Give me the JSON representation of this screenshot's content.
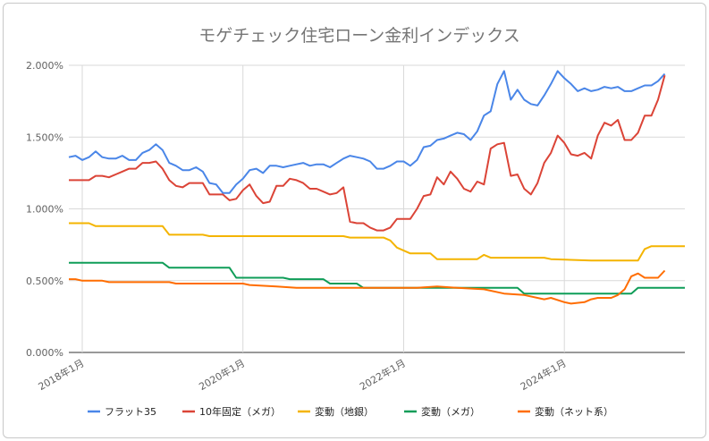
{
  "chart_data": {
    "type": "line",
    "title": "モゲチェック住宅ローン金利インデックス",
    "xlabel": "",
    "ylabel": "",
    "x_start": "2017-11",
    "x_end": "2025-07",
    "ylim": [
      0,
      2.0
    ],
    "yticks": [
      "0.000%",
      "0.500%",
      "1.000%",
      "1.500%",
      "2.000%"
    ],
    "xticks": [
      {
        "label": "2018年1月",
        "date": "2018-01"
      },
      {
        "label": "2020年1月",
        "date": "2020-01"
      },
      {
        "label": "2022年1月",
        "date": "2022-01"
      },
      {
        "label": "2024年1月",
        "date": "2024-01"
      }
    ],
    "grid": true,
    "legend_position": "bottom",
    "series": [
      {
        "name": "フラット35",
        "color": "#4a86e8",
        "points": [
          [
            "2017-11",
            1.36
          ],
          [
            "2017-12",
            1.37
          ],
          [
            "2018-01",
            1.34
          ],
          [
            "2018-02",
            1.36
          ],
          [
            "2018-03",
            1.4
          ],
          [
            "2018-04",
            1.36
          ],
          [
            "2018-05",
            1.35
          ],
          [
            "2018-06",
            1.35
          ],
          [
            "2018-07",
            1.37
          ],
          [
            "2018-08",
            1.34
          ],
          [
            "2018-09",
            1.34
          ],
          [
            "2018-10",
            1.39
          ],
          [
            "2018-11",
            1.41
          ],
          [
            "2018-12",
            1.45
          ],
          [
            "2019-01",
            1.41
          ],
          [
            "2019-02",
            1.32
          ],
          [
            "2019-03",
            1.3
          ],
          [
            "2019-04",
            1.27
          ],
          [
            "2019-05",
            1.27
          ],
          [
            "2019-06",
            1.29
          ],
          [
            "2019-07",
            1.26
          ],
          [
            "2019-08",
            1.18
          ],
          [
            "2019-09",
            1.17
          ],
          [
            "2019-10",
            1.11
          ],
          [
            "2019-11",
            1.11
          ],
          [
            "2019-12",
            1.17
          ],
          [
            "2020-01",
            1.21
          ],
          [
            "2020-02",
            1.27
          ],
          [
            "2020-03",
            1.28
          ],
          [
            "2020-04",
            1.25
          ],
          [
            "2020-05",
            1.3
          ],
          [
            "2020-06",
            1.3
          ],
          [
            "2020-07",
            1.29
          ],
          [
            "2020-08",
            1.3
          ],
          [
            "2020-09",
            1.31
          ],
          [
            "2020-10",
            1.32
          ],
          [
            "2020-11",
            1.3
          ],
          [
            "2020-12",
            1.31
          ],
          [
            "2021-01",
            1.31
          ],
          [
            "2021-02",
            1.29
          ],
          [
            "2021-03",
            1.32
          ],
          [
            "2021-04",
            1.35
          ],
          [
            "2021-05",
            1.37
          ],
          [
            "2021-06",
            1.36
          ],
          [
            "2021-07",
            1.35
          ],
          [
            "2021-08",
            1.33
          ],
          [
            "2021-09",
            1.28
          ],
          [
            "2021-10",
            1.28
          ],
          [
            "2021-11",
            1.3
          ],
          [
            "2021-12",
            1.33
          ],
          [
            "2022-01",
            1.33
          ],
          [
            "2022-02",
            1.3
          ],
          [
            "2022-03",
            1.34
          ],
          [
            "2022-04",
            1.43
          ],
          [
            "2022-05",
            1.44
          ],
          [
            "2022-06",
            1.48
          ],
          [
            "2022-07",
            1.49
          ],
          [
            "2022-08",
            1.51
          ],
          [
            "2022-09",
            1.53
          ],
          [
            "2022-10",
            1.52
          ],
          [
            "2022-11",
            1.48
          ],
          [
            "2022-12",
            1.54
          ],
          [
            "2023-01",
            1.65
          ],
          [
            "2023-02",
            1.68
          ],
          [
            "2023-03",
            1.87
          ],
          [
            "2023-04",
            1.96
          ],
          [
            "2023-05",
            1.76
          ],
          [
            "2023-06",
            1.83
          ],
          [
            "2023-07",
            1.76
          ],
          [
            "2023-08",
            1.73
          ],
          [
            "2023-09",
            1.72
          ],
          [
            "2023-10",
            1.79
          ],
          [
            "2023-11",
            1.87
          ],
          [
            "2023-12",
            1.96
          ],
          [
            "2024-01",
            1.91
          ],
          [
            "2024-02",
            1.87
          ],
          [
            "2024-03",
            1.82
          ],
          [
            "2024-04",
            1.84
          ],
          [
            "2024-05",
            1.82
          ],
          [
            "2024-06",
            1.83
          ],
          [
            "2024-07",
            1.85
          ],
          [
            "2024-08",
            1.84
          ],
          [
            "2024-09",
            1.85
          ],
          [
            "2024-10",
            1.82
          ],
          [
            "2024-11",
            1.82
          ],
          [
            "2024-12",
            1.84
          ],
          [
            "2025-01",
            1.86
          ],
          [
            "2025-02",
            1.86
          ],
          [
            "2025-03",
            1.89
          ],
          [
            "2025-04",
            1.94
          ]
        ]
      },
      {
        "name": "10年固定（メガ）",
        "color": "#db4437",
        "points": [
          [
            "2017-11",
            1.2
          ],
          [
            "2017-12",
            1.2
          ],
          [
            "2018-01",
            1.2
          ],
          [
            "2018-02",
            1.2
          ],
          [
            "2018-03",
            1.23
          ],
          [
            "2018-04",
            1.23
          ],
          [
            "2018-05",
            1.22
          ],
          [
            "2018-06",
            1.24
          ],
          [
            "2018-07",
            1.26
          ],
          [
            "2018-08",
            1.28
          ],
          [
            "2018-09",
            1.28
          ],
          [
            "2018-10",
            1.32
          ],
          [
            "2018-11",
            1.32
          ],
          [
            "2018-12",
            1.33
          ],
          [
            "2019-01",
            1.28
          ],
          [
            "2019-02",
            1.2
          ],
          [
            "2019-03",
            1.16
          ],
          [
            "2019-04",
            1.15
          ],
          [
            "2019-05",
            1.18
          ],
          [
            "2019-06",
            1.18
          ],
          [
            "2019-07",
            1.18
          ],
          [
            "2019-08",
            1.1
          ],
          [
            "2019-09",
            1.1
          ],
          [
            "2019-10",
            1.1
          ],
          [
            "2019-11",
            1.06
          ],
          [
            "2019-12",
            1.07
          ],
          [
            "2020-01",
            1.13
          ],
          [
            "2020-02",
            1.17
          ],
          [
            "2020-03",
            1.09
          ],
          [
            "2020-04",
            1.04
          ],
          [
            "2020-05",
            1.05
          ],
          [
            "2020-06",
            1.16
          ],
          [
            "2020-07",
            1.16
          ],
          [
            "2020-08",
            1.21
          ],
          [
            "2020-09",
            1.2
          ],
          [
            "2020-10",
            1.18
          ],
          [
            "2020-11",
            1.14
          ],
          [
            "2020-12",
            1.14
          ],
          [
            "2021-01",
            1.12
          ],
          [
            "2021-02",
            1.1
          ],
          [
            "2021-03",
            1.11
          ],
          [
            "2021-04",
            1.15
          ],
          [
            "2021-05",
            0.91
          ],
          [
            "2021-06",
            0.9
          ],
          [
            "2021-07",
            0.9
          ],
          [
            "2021-08",
            0.87
          ],
          [
            "2021-09",
            0.85
          ],
          [
            "2021-10",
            0.85
          ],
          [
            "2021-11",
            0.87
          ],
          [
            "2021-12",
            0.93
          ],
          [
            "2022-01",
            0.93
          ],
          [
            "2022-02",
            0.93
          ],
          [
            "2022-03",
            1.0
          ],
          [
            "2022-04",
            1.09
          ],
          [
            "2022-05",
            1.1
          ],
          [
            "2022-06",
            1.22
          ],
          [
            "2022-07",
            1.17
          ],
          [
            "2022-08",
            1.26
          ],
          [
            "2022-09",
            1.21
          ],
          [
            "2022-10",
            1.14
          ],
          [
            "2022-11",
            1.12
          ],
          [
            "2022-12",
            1.19
          ],
          [
            "2023-01",
            1.17
          ],
          [
            "2023-02",
            1.42
          ],
          [
            "2023-03",
            1.45
          ],
          [
            "2023-04",
            1.46
          ],
          [
            "2023-05",
            1.23
          ],
          [
            "2023-06",
            1.24
          ],
          [
            "2023-07",
            1.14
          ],
          [
            "2023-08",
            1.1
          ],
          [
            "2023-09",
            1.18
          ],
          [
            "2023-10",
            1.32
          ],
          [
            "2023-11",
            1.39
          ],
          [
            "2023-12",
            1.51
          ],
          [
            "2024-01",
            1.46
          ],
          [
            "2024-02",
            1.38
          ],
          [
            "2024-03",
            1.37
          ],
          [
            "2024-04",
            1.39
          ],
          [
            "2024-05",
            1.35
          ],
          [
            "2024-06",
            1.51
          ],
          [
            "2024-07",
            1.6
          ],
          [
            "2024-08",
            1.58
          ],
          [
            "2024-09",
            1.62
          ],
          [
            "2024-10",
            1.48
          ],
          [
            "2024-11",
            1.48
          ],
          [
            "2024-12",
            1.53
          ],
          [
            "2025-01",
            1.65
          ],
          [
            "2025-02",
            1.65
          ],
          [
            "2025-03",
            1.76
          ],
          [
            "2025-04",
            1.93
          ]
        ]
      },
      {
        "name": "変動（地銀）",
        "color": "#f4b400",
        "points": [
          [
            "2017-11",
            0.9
          ],
          [
            "2018-02",
            0.9
          ],
          [
            "2018-03",
            0.88
          ],
          [
            "2019-01",
            0.88
          ],
          [
            "2019-02",
            0.82
          ],
          [
            "2019-07",
            0.82
          ],
          [
            "2019-08",
            0.81
          ],
          [
            "2021-04",
            0.81
          ],
          [
            "2021-05",
            0.8
          ],
          [
            "2021-10",
            0.8
          ],
          [
            "2021-11",
            0.78
          ],
          [
            "2021-12",
            0.73
          ],
          [
            "2022-02",
            0.69
          ],
          [
            "2022-05",
            0.69
          ],
          [
            "2022-06",
            0.65
          ],
          [
            "2022-12",
            0.65
          ],
          [
            "2023-01",
            0.68
          ],
          [
            "2023-02",
            0.66
          ],
          [
            "2023-10",
            0.66
          ],
          [
            "2023-11",
            0.65
          ],
          [
            "2024-05",
            0.64
          ],
          [
            "2024-12",
            0.64
          ],
          [
            "2025-01",
            0.72
          ],
          [
            "2025-02",
            0.74
          ],
          [
            "2025-07",
            0.74
          ]
        ]
      },
      {
        "name": "変動（メガ）",
        "color": "#0f9d58",
        "points": [
          [
            "2017-11",
            0.625
          ],
          [
            "2019-01",
            0.625
          ],
          [
            "2019-02",
            0.59
          ],
          [
            "2019-11",
            0.59
          ],
          [
            "2019-12",
            0.52
          ],
          [
            "2020-07",
            0.52
          ],
          [
            "2020-08",
            0.51
          ],
          [
            "2021-01",
            0.51
          ],
          [
            "2021-02",
            0.48
          ],
          [
            "2021-06",
            0.48
          ],
          [
            "2021-07",
            0.45
          ],
          [
            "2023-06",
            0.45
          ],
          [
            "2023-07",
            0.41
          ],
          [
            "2024-11",
            0.41
          ],
          [
            "2024-12",
            0.45
          ],
          [
            "2025-07",
            0.45
          ]
        ]
      },
      {
        "name": "変動（ネット系）",
        "color": "#ff6d01",
        "points": [
          [
            "2017-11",
            0.51
          ],
          [
            "2017-12",
            0.51
          ],
          [
            "2018-01",
            0.5
          ],
          [
            "2018-04",
            0.5
          ],
          [
            "2018-05",
            0.49
          ],
          [
            "2019-02",
            0.49
          ],
          [
            "2019-03",
            0.48
          ],
          [
            "2020-01",
            0.48
          ],
          [
            "2020-02",
            0.47
          ],
          [
            "2020-06",
            0.46
          ],
          [
            "2020-09",
            0.45
          ],
          [
            "2021-02",
            0.45
          ],
          [
            "2021-06",
            0.45
          ],
          [
            "2022-03",
            0.45
          ],
          [
            "2022-06",
            0.46
          ],
          [
            "2022-09",
            0.45
          ],
          [
            "2023-01",
            0.44
          ],
          [
            "2023-04",
            0.41
          ],
          [
            "2023-07",
            0.4
          ],
          [
            "2023-10",
            0.37
          ],
          [
            "2023-11",
            0.38
          ],
          [
            "2024-01",
            0.35
          ],
          [
            "2024-02",
            0.34
          ],
          [
            "2024-04",
            0.35
          ],
          [
            "2024-05",
            0.37
          ],
          [
            "2024-06",
            0.38
          ],
          [
            "2024-07",
            0.38
          ],
          [
            "2024-08",
            0.38
          ],
          [
            "2024-09",
            0.4
          ],
          [
            "2024-10",
            0.44
          ],
          [
            "2024-11",
            0.53
          ],
          [
            "2024-12",
            0.55
          ],
          [
            "2025-01",
            0.52
          ],
          [
            "2025-02",
            0.52
          ],
          [
            "2025-03",
            0.52
          ],
          [
            "2025-04",
            0.57
          ]
        ]
      }
    ]
  }
}
